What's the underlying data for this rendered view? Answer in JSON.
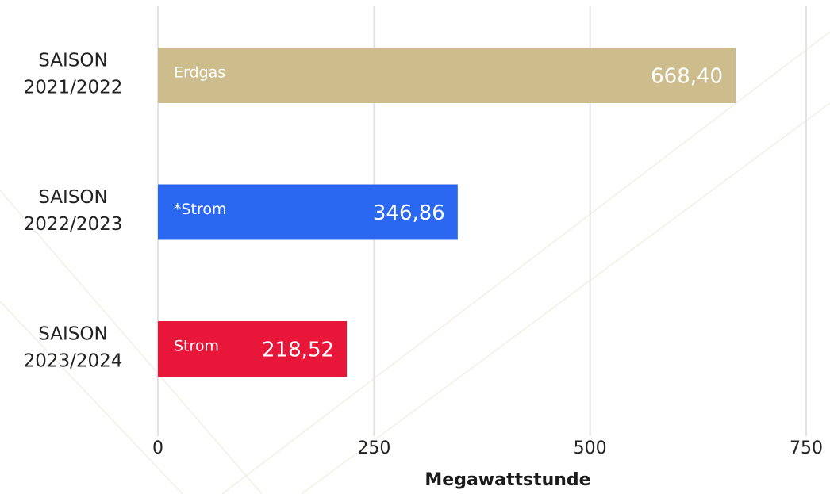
{
  "chart_data": {
    "type": "hbar",
    "categories": [
      [
        "SAISON",
        "2021/2022"
      ],
      [
        "SAISON",
        "2022/2023"
      ],
      [
        "SAISON",
        "2023/2024"
      ]
    ],
    "values": [
      668.4,
      346.86,
      218.52
    ],
    "value_labels": [
      "668,40",
      "346,86",
      "218,52"
    ],
    "bar_labels": [
      "Erdgas",
      "*Strom",
      "Strom"
    ],
    "colors": [
      "#cdbd8c",
      "#2b68f2",
      "#e8173a"
    ],
    "xlim": [
      0,
      750
    ],
    "xticks": [
      0,
      250,
      500,
      750
    ],
    "x_label": "Megawattstunde",
    "grid": true
  }
}
